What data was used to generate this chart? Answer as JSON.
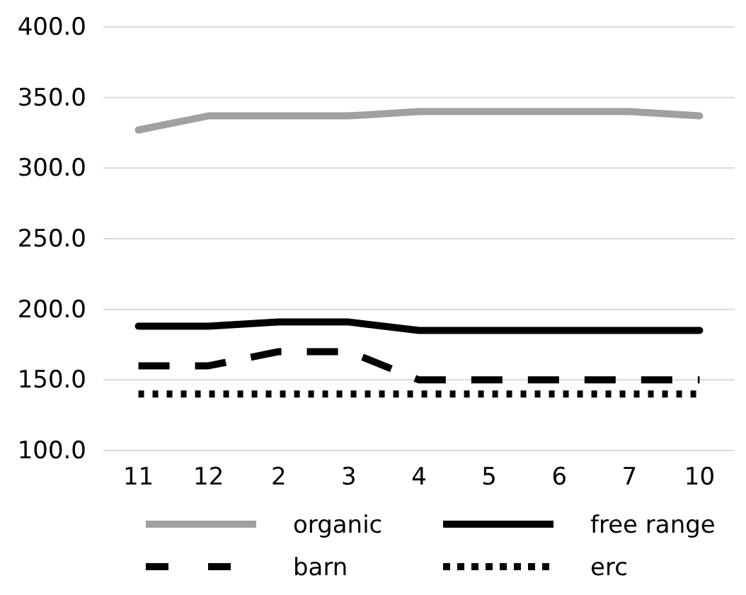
{
  "chart_data": {
    "type": "line",
    "categories": [
      "11",
      "12",
      "2",
      "3",
      "4",
      "5",
      "6",
      "7",
      "10"
    ],
    "series": [
      {
        "name": "organic",
        "color": "#a0a0a0",
        "line_style": "solid",
        "values": [
          327,
          337,
          337,
          337,
          340,
          340,
          340,
          340,
          337
        ]
      },
      {
        "name": "free range",
        "color": "#000000",
        "line_style": "solid",
        "values": [
          188,
          188,
          191,
          191,
          185,
          185,
          185,
          185,
          185
        ]
      },
      {
        "name": "barn",
        "color": "#000000",
        "line_style": "dashed",
        "values": [
          160,
          160,
          170,
          170,
          150,
          150,
          150,
          150,
          150
        ]
      },
      {
        "name": "erc",
        "color": "#000000",
        "line_style": "dotted",
        "values": [
          140,
          140,
          140,
          140,
          140,
          140,
          140,
          140,
          140
        ]
      }
    ],
    "ylim": [
      100,
      400
    ],
    "yticks": [
      {
        "value": 100,
        "label": "100.0"
      },
      {
        "value": 150,
        "label": "150.0"
      },
      {
        "value": 200,
        "label": "200.0"
      },
      {
        "value": 250,
        "label": "250.0"
      },
      {
        "value": 300,
        "label": "300.0"
      },
      {
        "value": 350,
        "label": "350.0"
      },
      {
        "value": 400,
        "label": "400.0"
      }
    ],
    "grid": "y",
    "legend": "bottom",
    "marker": "none"
  }
}
